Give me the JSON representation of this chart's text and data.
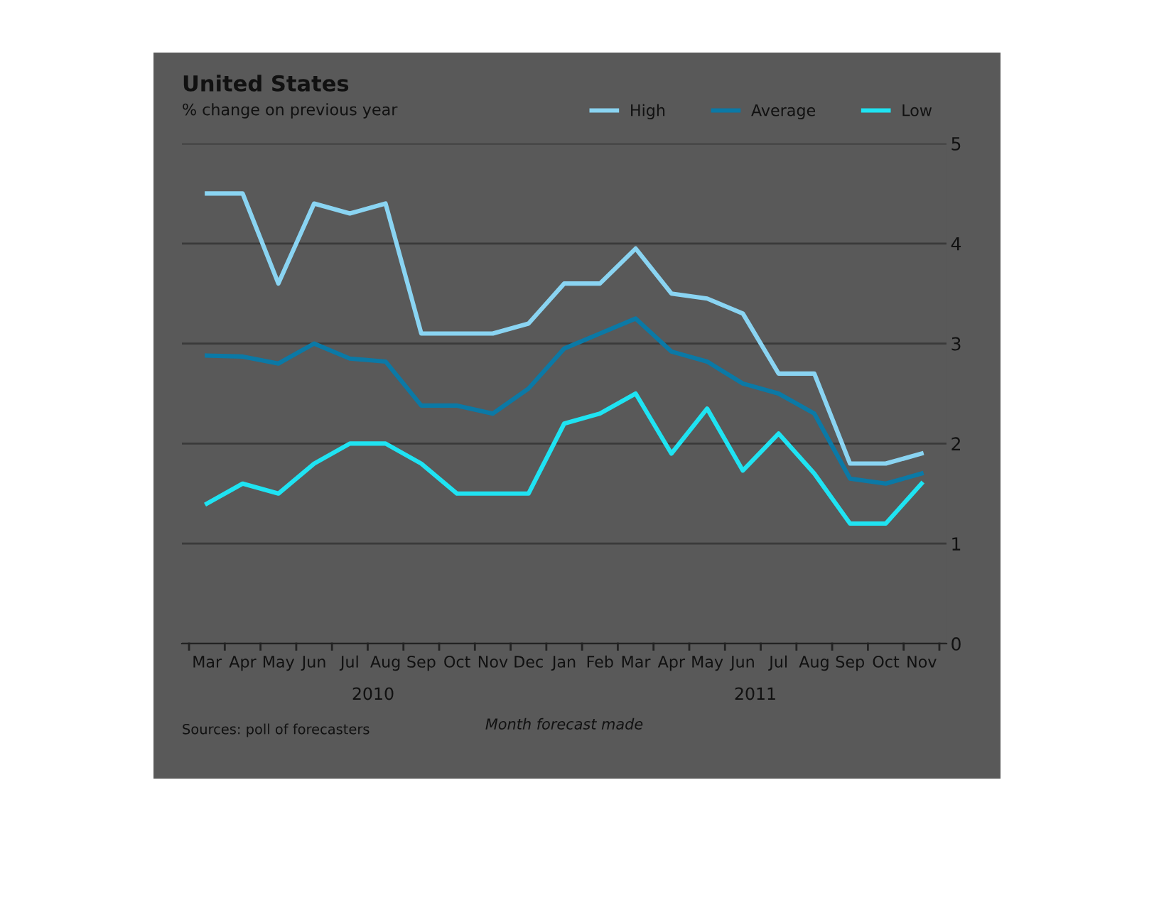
{
  "chart_data": {
    "type": "line",
    "title": "United States",
    "subtitle": "% change on previous year",
    "xlabel": "Month forecast made",
    "categories": [
      "Mar",
      "Apr",
      "May",
      "Jun",
      "Jul",
      "Aug",
      "Sep",
      "Oct",
      "Nov",
      "Dec",
      "Jan",
      "Feb",
      "Mar",
      "Apr",
      "May",
      "Jun",
      "Jul",
      "Aug",
      "Sep",
      "Oct",
      "Nov"
    ],
    "series": [
      {
        "name": "High",
        "color": "#8ad4f2",
        "values": [
          4.5,
          4.5,
          3.6,
          4.4,
          4.3,
          4.4,
          3.1,
          3.1,
          3.1,
          3.2,
          3.6,
          3.6,
          3.95,
          3.5,
          3.45,
          3.3,
          2.7,
          2.7,
          1.8,
          1.8,
          1.9
        ]
      },
      {
        "name": "Average",
        "color": "#0b79a6",
        "values": [
          2.88,
          2.87,
          2.8,
          3.0,
          2.85,
          2.82,
          2.38,
          2.38,
          2.3,
          2.55,
          2.95,
          3.1,
          3.25,
          2.92,
          2.82,
          2.6,
          2.5,
          2.3,
          1.65,
          1.6,
          1.7
        ]
      },
      {
        "name": "Low",
        "color": "#1fe3f2",
        "values": [
          1.4,
          1.6,
          1.5,
          1.8,
          2.0,
          2.0,
          1.8,
          1.5,
          1.5,
          1.5,
          2.2,
          2.3,
          2.5,
          1.9,
          2.35,
          1.73,
          2.1,
          1.7,
          1.2,
          1.2,
          1.6
        ]
      }
    ],
    "ylim": [
      0,
      5
    ],
    "yticks": [
      0,
      1,
      2,
      3,
      4,
      5
    ],
    "grid": "y",
    "legend": "top right",
    "marker": "none",
    "line_style": "solid",
    "annotations": [
      "2010",
      "2011",
      "Sources: poll of forecasters"
    ]
  }
}
